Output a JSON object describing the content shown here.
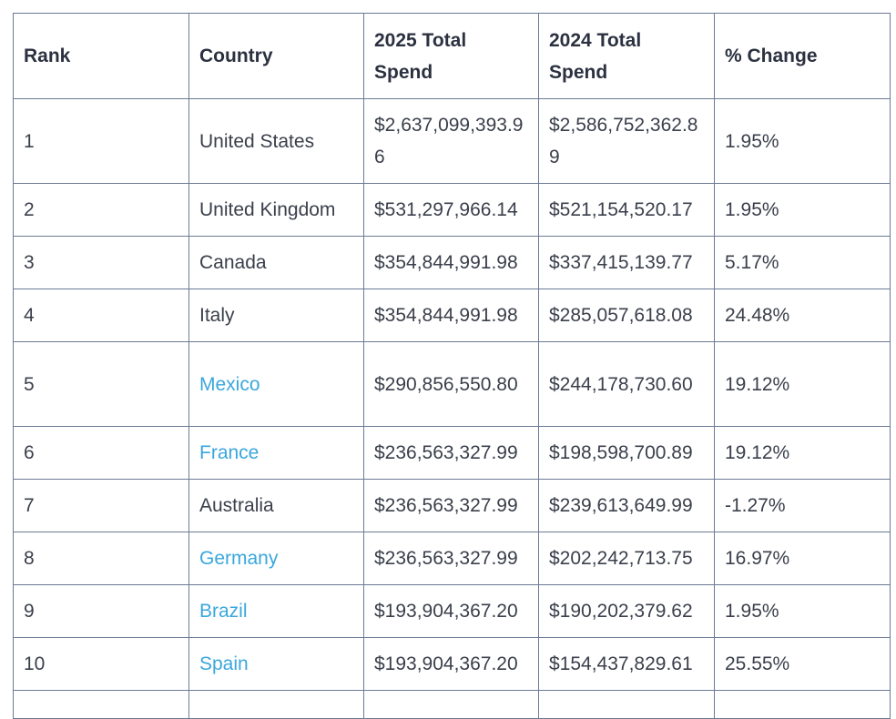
{
  "table": {
    "headers": [
      "Rank",
      "Country",
      "2025 Total Spend",
      "2024 Total Spend",
      "% Change"
    ],
    "rows": [
      {
        "rank": "1",
        "country": "United States",
        "linked": false,
        "spend_2025": "$2,637,099,393.96",
        "spend_2024": "$2,586,752,362.89",
        "change": "1.95%"
      },
      {
        "rank": "2",
        "country": "United Kingdom",
        "linked": false,
        "spend_2025": "$531,297,966.14",
        "spend_2024": "$521,154,520.17",
        "change": "1.95%"
      },
      {
        "rank": "3",
        "country": "Canada",
        "linked": false,
        "spend_2025": "$354,844,991.98",
        "spend_2024": "$337,415,139.77",
        "change": "5.17%"
      },
      {
        "rank": "4",
        "country": "Italy",
        "linked": false,
        "spend_2025": "$354,844,991.98",
        "spend_2024": "$285,057,618.08",
        "change": "24.48%"
      },
      {
        "rank": "5",
        "country": "Mexico",
        "linked": true,
        "spend_2025": "$290,856,550.80",
        "spend_2024": "$244,178,730.60",
        "change": "19.12%"
      },
      {
        "rank": "6",
        "country": "France",
        "linked": true,
        "spend_2025": "$236,563,327.99",
        "spend_2024": "$198,598,700.89",
        "change": "19.12%"
      },
      {
        "rank": "7",
        "country": "Australia",
        "linked": false,
        "spend_2025": "$236,563,327.99",
        "spend_2024": "$239,613,649.99",
        "change": "-1.27%"
      },
      {
        "rank": "8",
        "country": "Germany",
        "linked": true,
        "spend_2025": "$236,563,327.99",
        "spend_2024": "$202,242,713.75",
        "change": "16.97%"
      },
      {
        "rank": "9",
        "country": "Brazil",
        "linked": true,
        "spend_2025": "$193,904,367.20",
        "spend_2024": "$190,202,379.62",
        "change": "1.95%"
      },
      {
        "rank": "10",
        "country": "Spain",
        "linked": true,
        "spend_2025": "$193,904,367.20",
        "spend_2024": "$154,437,829.61",
        "change": "25.55%"
      }
    ]
  },
  "colors": {
    "link": "#3aa7dc",
    "border": "#6b7a94",
    "text": "#3a3f4b"
  }
}
